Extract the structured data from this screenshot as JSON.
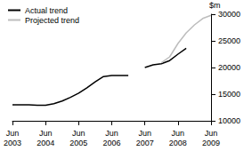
{
  "chart_data": {
    "type": "line",
    "y_label": "$m",
    "categories": [
      "Jun\n2003",
      null,
      null,
      null,
      "Jun\n2004",
      null,
      null,
      null,
      "Jun\n2005",
      null,
      null,
      null,
      "Jun\n2006",
      null,
      null,
      null,
      "Jun\n2007",
      null,
      null,
      null,
      "Jun\n2008",
      null,
      null,
      null,
      "Jun\n2009"
    ],
    "series": [
      {
        "name": "Actual trend",
        "color": "#000000",
        "values": [
          13000,
          13000,
          13000,
          12900,
          12900,
          13200,
          13700,
          14400,
          15200,
          16200,
          17300,
          18300,
          18500,
          18500,
          18500,
          null,
          20000,
          20500,
          20700,
          21300,
          22500,
          23600,
          null,
          null,
          null
        ]
      },
      {
        "name": "Projected trend",
        "color": "#bdbdbd",
        "values": [
          null,
          null,
          null,
          null,
          null,
          null,
          null,
          null,
          null,
          null,
          null,
          null,
          null,
          null,
          null,
          null,
          null,
          null,
          20900,
          22000,
          24500,
          26500,
          28000,
          29200,
          29800
        ]
      }
    ],
    "ylim": [
      10000,
      30000
    ],
    "yticks": [
      10000,
      15000,
      20000,
      25000,
      30000
    ],
    "grid": false,
    "legend": "top-left"
  }
}
